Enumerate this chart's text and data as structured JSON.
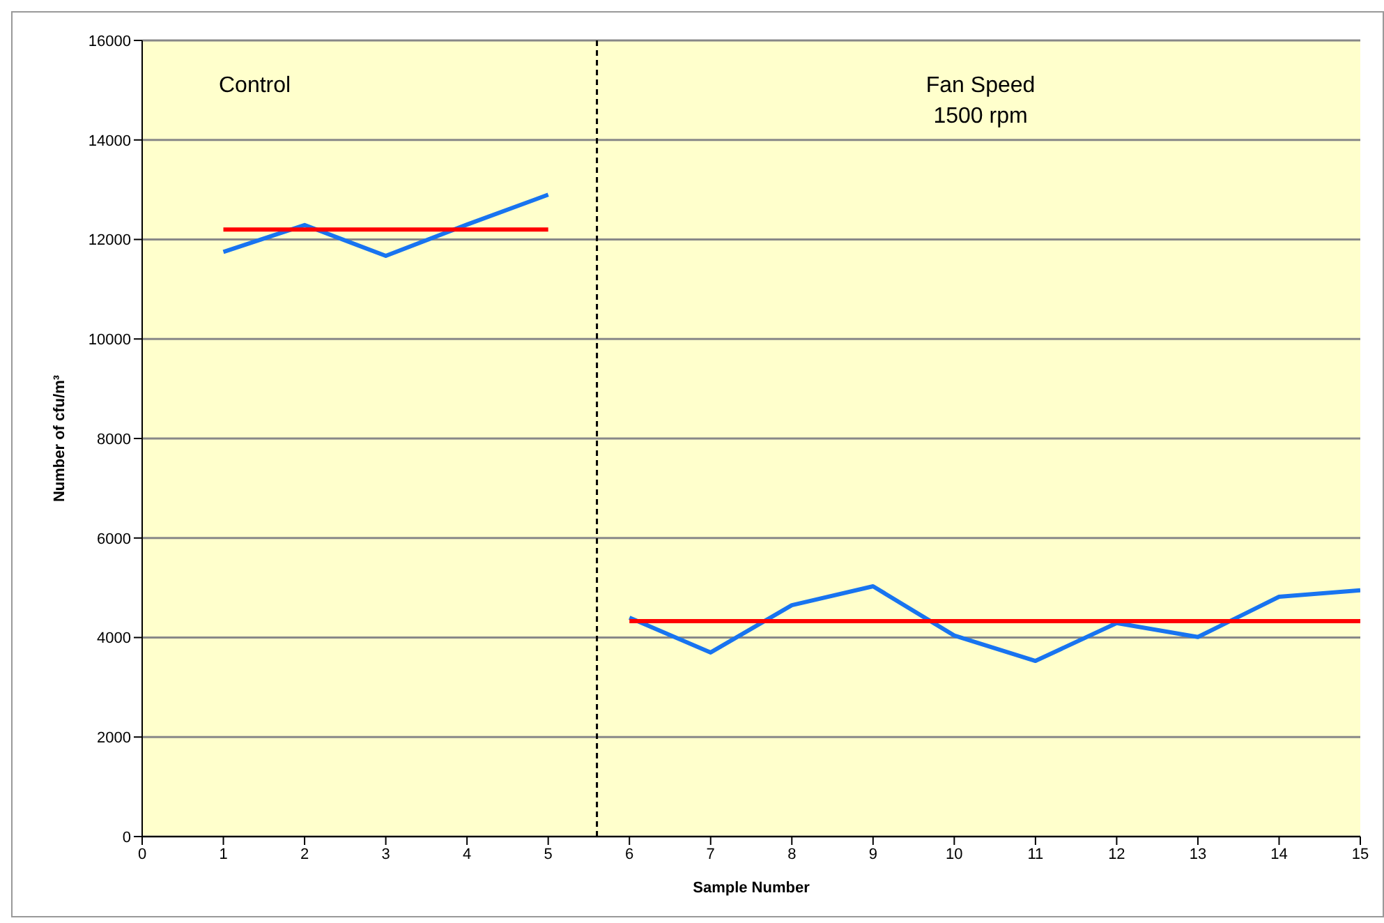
{
  "chart_data": {
    "type": "line",
    "xlabel": "Sample Number",
    "ylabel": "Number of cfu/m³",
    "xlim": [
      0,
      15
    ],
    "xticks": [
      0,
      1,
      2,
      3,
      4,
      5,
      6,
      7,
      8,
      9,
      10,
      11,
      12,
      13,
      14,
      15
    ],
    "ylim": [
      0,
      16000
    ],
    "yticks": [
      0,
      2000,
      4000,
      6000,
      8000,
      10000,
      12000,
      14000,
      16000
    ],
    "grid": "y",
    "legend": false,
    "marker": "none",
    "line_style": "solid",
    "series": [
      {
        "color": "#1874f0",
        "x": [
          1,
          2,
          3,
          4,
          5
        ],
        "values": [
          11750,
          12290,
          11670,
          12300,
          12900
        ]
      },
      {
        "color": "#1874f0",
        "x": [
          6,
          7,
          8,
          9,
          10,
          11,
          12,
          13,
          14,
          15
        ],
        "values": [
          4400,
          3700,
          4650,
          5030,
          4040,
          3530,
          4290,
          4010,
          4820,
          4950
        ]
      },
      {
        "color": "#ff0000",
        "x": [
          1,
          5
        ],
        "values": [
          12200,
          12200
        ]
      },
      {
        "color": "#ff0000",
        "x": [
          6,
          15
        ],
        "values": [
          4330,
          4330
        ]
      }
    ],
    "ref_lines": [
      {
        "axis": "x",
        "value": 5.6,
        "color": "#000000",
        "line_style": "dashed"
      }
    ],
    "annotations": [
      "Control",
      "Fan Speed\n1500 rpm"
    ]
  }
}
